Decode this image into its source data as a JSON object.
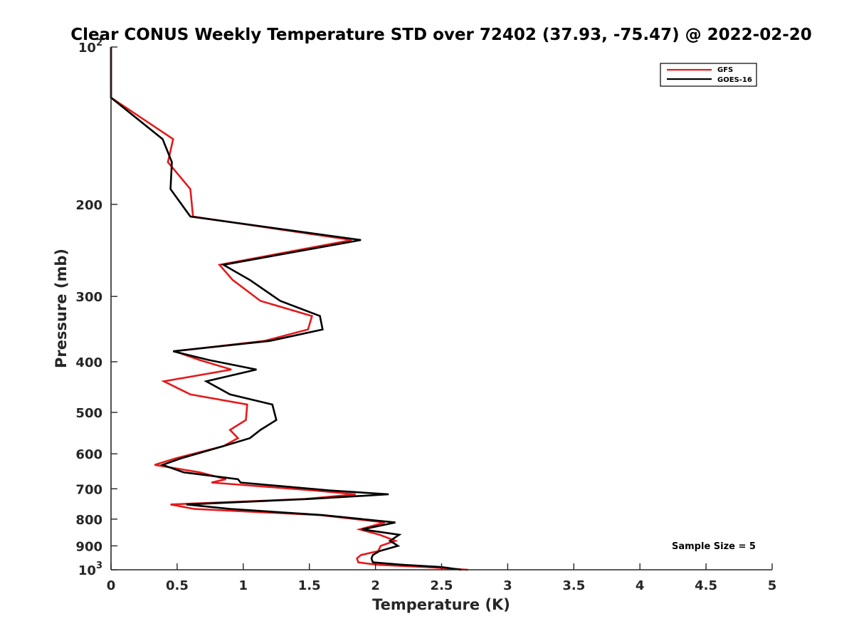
{
  "chart_data": {
    "type": "line",
    "title": "Clear CONUS Weekly Temperature STD over 72402 (37.93, -75.47) @ 2022-02-20",
    "xlabel": "Temperature (K)",
    "ylabel": "Pressure (mb)",
    "xlim": [
      0,
      5
    ],
    "ylim": [
      100,
      1000
    ],
    "yscale": "log",
    "y_reversed": true,
    "x_ticks": [
      0,
      0.5,
      1,
      1.5,
      2,
      2.5,
      3,
      3.5,
      4,
      4.5,
      5
    ],
    "x_tick_labels": [
      "0",
      "0.5",
      "1",
      "1.5",
      "2",
      "2.5",
      "3",
      "3.5",
      "4",
      "4.5",
      "5"
    ],
    "y_ticks": [
      100,
      200,
      300,
      400,
      500,
      600,
      700,
      800,
      900,
      1000
    ],
    "y_tick_labels": [
      {
        "base": "10",
        "exp": "2"
      },
      {
        "base": "200",
        "exp": ""
      },
      {
        "base": "300",
        "exp": ""
      },
      {
        "base": "400",
        "exp": ""
      },
      {
        "base": "500",
        "exp": ""
      },
      {
        "base": "600",
        "exp": ""
      },
      {
        "base": "700",
        "exp": ""
      },
      {
        "base": "800",
        "exp": ""
      },
      {
        "base": "900",
        "exp": ""
      },
      {
        "base": "10",
        "exp": "3"
      }
    ],
    "legend": {
      "location": "top-right",
      "entries": [
        "GFS",
        "GOES-16"
      ]
    },
    "annotation": "Sample Size = 5",
    "series": [
      {
        "name": "GFS",
        "color": "#e41a1c",
        "points": [
          [
            0,
            100
          ],
          [
            0,
            125
          ],
          [
            0.47,
            150
          ],
          [
            0.43,
            166
          ],
          [
            0.6,
            187
          ],
          [
            0.62,
            211
          ],
          [
            1.82,
            234
          ],
          [
            0.82,
            261
          ],
          [
            0.92,
            279
          ],
          [
            1.13,
            306
          ],
          [
            1.52,
            327
          ],
          [
            1.49,
            347
          ],
          [
            1.16,
            365
          ],
          [
            0.48,
            382
          ],
          [
            0.67,
            397
          ],
          [
            0.91,
            414
          ],
          [
            0.4,
            436
          ],
          [
            0.6,
            462
          ],
          [
            1.03,
            483
          ],
          [
            1.02,
            517
          ],
          [
            0.9,
            540
          ],
          [
            0.96,
            560
          ],
          [
            0.85,
            580
          ],
          [
            0.49,
            612
          ],
          [
            0.33,
            630
          ],
          [
            0.67,
            651
          ],
          [
            0.87,
            671
          ],
          [
            0.76,
            681
          ],
          [
            1.53,
            705
          ],
          [
            1.85,
            717
          ],
          [
            1.47,
            732
          ],
          [
            0.45,
            750
          ],
          [
            0.63,
            765
          ],
          [
            1.58,
            786
          ],
          [
            2.07,
            812
          ],
          [
            1.88,
            837
          ],
          [
            2.03,
            857
          ],
          [
            2.15,
            880
          ],
          [
            2.04,
            900
          ],
          [
            2.02,
            921
          ],
          [
            1.89,
            937
          ],
          [
            1.86,
            951
          ],
          [
            1.87,
            968
          ],
          [
            2.01,
            978
          ],
          [
            2.38,
            988
          ],
          [
            2.7,
            1000
          ]
        ]
      },
      {
        "name": "GOES-16",
        "color": "#000000",
        "points": [
          [
            0,
            100
          ],
          [
            0,
            125
          ],
          [
            0.39,
            150
          ],
          [
            0.46,
            166
          ],
          [
            0.45,
            187
          ],
          [
            0.6,
            211
          ],
          [
            1.89,
            234
          ],
          [
            0.85,
            261
          ],
          [
            1.05,
            279
          ],
          [
            1.28,
            306
          ],
          [
            1.58,
            327
          ],
          [
            1.6,
            347
          ],
          [
            1.2,
            365
          ],
          [
            0.47,
            382
          ],
          [
            0.74,
            397
          ],
          [
            1.1,
            414
          ],
          [
            0.72,
            436
          ],
          [
            0.9,
            462
          ],
          [
            1.22,
            483
          ],
          [
            1.25,
            517
          ],
          [
            1.13,
            540
          ],
          [
            1.05,
            560
          ],
          [
            0.85,
            580
          ],
          [
            0.53,
            612
          ],
          [
            0.39,
            630
          ],
          [
            0.55,
            651
          ],
          [
            0.96,
            671
          ],
          [
            0.98,
            681
          ],
          [
            1.65,
            705
          ],
          [
            2.1,
            717
          ],
          [
            1.5,
            732
          ],
          [
            0.57,
            750
          ],
          [
            0.9,
            765
          ],
          [
            1.6,
            786
          ],
          [
            2.15,
            812
          ],
          [
            1.9,
            837
          ],
          [
            2.18,
            857
          ],
          [
            2.11,
            880
          ],
          [
            2.17,
            900
          ],
          [
            2.03,
            921
          ],
          [
            1.98,
            937
          ],
          [
            1.97,
            951
          ],
          [
            1.98,
            968
          ],
          [
            2.2,
            978
          ],
          [
            2.5,
            988
          ],
          [
            2.65,
            1000
          ]
        ]
      }
    ]
  }
}
